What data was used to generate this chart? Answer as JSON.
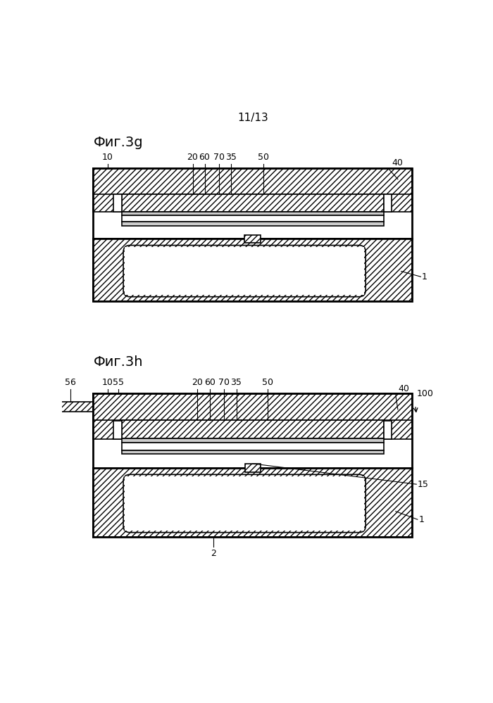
{
  "page_header": "11/13",
  "fig_top_label": "Фиг.3g",
  "fig_bottom_label": "Фиг.3h",
  "bg_color": "#ffffff",
  "line_color": "#000000",
  "lw": 1.2
}
